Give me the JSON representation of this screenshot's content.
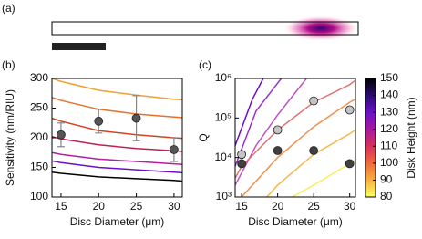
{
  "panels": [
    "(a)",
    "(b)",
    "(c)"
  ],
  "chart_data": [
    {
      "type": "line",
      "xlabel": "Disc Diameter (μm)",
      "ylabel": "Sensitivity (nm/RIU)",
      "xlim": [
        13.8,
        31.1
      ],
      "xticks": [
        15,
        20,
        25,
        30
      ],
      "ylim": [
        100,
        300
      ],
      "yticks": [
        100,
        150,
        200,
        250,
        300
      ],
      "series": [
        {
          "color": "#f0a030",
          "x": [
            13.8,
            15,
            20,
            25,
            30,
            31.1
          ],
          "values": [
            300,
            295,
            280,
            272,
            265,
            264
          ]
        },
        {
          "color": "#e8702a",
          "x": [
            13.8,
            15,
            20,
            25,
            30,
            31.1
          ],
          "values": [
            268,
            263,
            248,
            240,
            235,
            234
          ]
        },
        {
          "color": "#d04424",
          "x": [
            13.8,
            15,
            20,
            25,
            30,
            31.1
          ],
          "values": [
            233,
            228,
            212,
            205,
            200,
            199
          ]
        },
        {
          "color": "#c02050",
          "x": [
            13.8,
            15,
            20,
            25,
            30,
            31.1
          ],
          "values": [
            202,
            198,
            188,
            182,
            178,
            177
          ]
        },
        {
          "color": "#b020a0",
          "x": [
            13.8,
            15,
            20,
            25,
            30,
            31.1
          ],
          "values": [
            175,
            172,
            164,
            160,
            156,
            155
          ]
        },
        {
          "color": "#6a10c8",
          "x": [
            13.8,
            15,
            20,
            25,
            30,
            31.1
          ],
          "values": [
            161,
            158,
            150,
            146,
            142,
            141
          ]
        },
        {
          "color": "#000000",
          "x": [
            13.8,
            15,
            20,
            25,
            30,
            31.1
          ],
          "values": [
            142,
            140,
            134,
            131,
            128,
            127
          ]
        }
      ],
      "points": [
        {
          "color": "#555555",
          "x": [
            15,
            20,
            25,
            30
          ],
          "values": [
            205,
            228,
            233,
            180
          ],
          "errors": [
            20,
            20,
            38,
            20
          ]
        }
      ]
    },
    {
      "type": "line",
      "log_y": true,
      "xlabel": "Disc Diameter (μm)",
      "ylabel": "Q",
      "xlim": [
        14.1,
        30.8
      ],
      "xticks": [
        15,
        20,
        25,
        30
      ],
      "ylim": [
        1000,
        1000000
      ],
      "yticks": [
        {
          "value": 1000,
          "label": "10³"
        },
        {
          "value": 10000,
          "label": "10⁴"
        },
        {
          "value": 100000,
          "label": "10⁵"
        },
        {
          "value": 1000000,
          "label": "10⁶"
        }
      ],
      "series": [
        {
          "color": "#6a10c8",
          "x": [
            14.1,
            16.5,
            18
          ],
          "values": [
            20000,
            300000,
            1000000
          ]
        },
        {
          "color": "#9a30d0",
          "x": [
            14.1,
            17,
            20.5
          ],
          "values": [
            6000,
            150000,
            1000000
          ]
        },
        {
          "color": "#c050c0",
          "x": [
            14.1,
            17,
            20,
            24
          ],
          "values": [
            2000,
            20000,
            120000,
            1000000
          ]
        },
        {
          "color": "#e07070",
          "x": [
            14.1,
            15,
            20,
            25,
            30,
            30.8
          ],
          "values": [
            3000,
            6000,
            50000,
            250000,
            700000,
            900000
          ]
        },
        {
          "color": "#f09050",
          "x": [
            15,
            20,
            25,
            30,
            30.8
          ],
          "values": [
            1000,
            10000,
            60000,
            250000,
            300000
          ]
        },
        {
          "color": "#f5b84a",
          "x": [
            18.5,
            20,
            25,
            30,
            30.8
          ],
          "values": [
            1000,
            2000,
            12000,
            40000,
            50000
          ]
        },
        {
          "color": "#f8f060",
          "x": [
            22,
            25,
            30,
            30.8
          ],
          "values": [
            1000,
            2000,
            7000,
            9000
          ]
        }
      ],
      "points": [
        {
          "color": "#c4c4c4",
          "x": [
            15,
            20,
            25,
            30
          ],
          "values": [
            12000,
            50000,
            270000,
            160000
          ]
        },
        {
          "color": "#404040",
          "x": [
            15,
            20,
            25,
            30
          ],
          "values": [
            7000,
            15000,
            15000,
            7000
          ]
        }
      ]
    },
    {
      "type": "colorbar",
      "label": "Disk Height (nm)",
      "lim": [
        80,
        150
      ],
      "ticks": [
        80,
        90,
        100,
        110,
        120,
        130,
        140,
        150
      ],
      "colormap": [
        "#fcff60",
        "#f8b040",
        "#ef6a3a",
        "#d8305a",
        "#a818a0",
        "#6a10c8",
        "#2a0a70",
        "#000000"
      ]
    }
  ]
}
